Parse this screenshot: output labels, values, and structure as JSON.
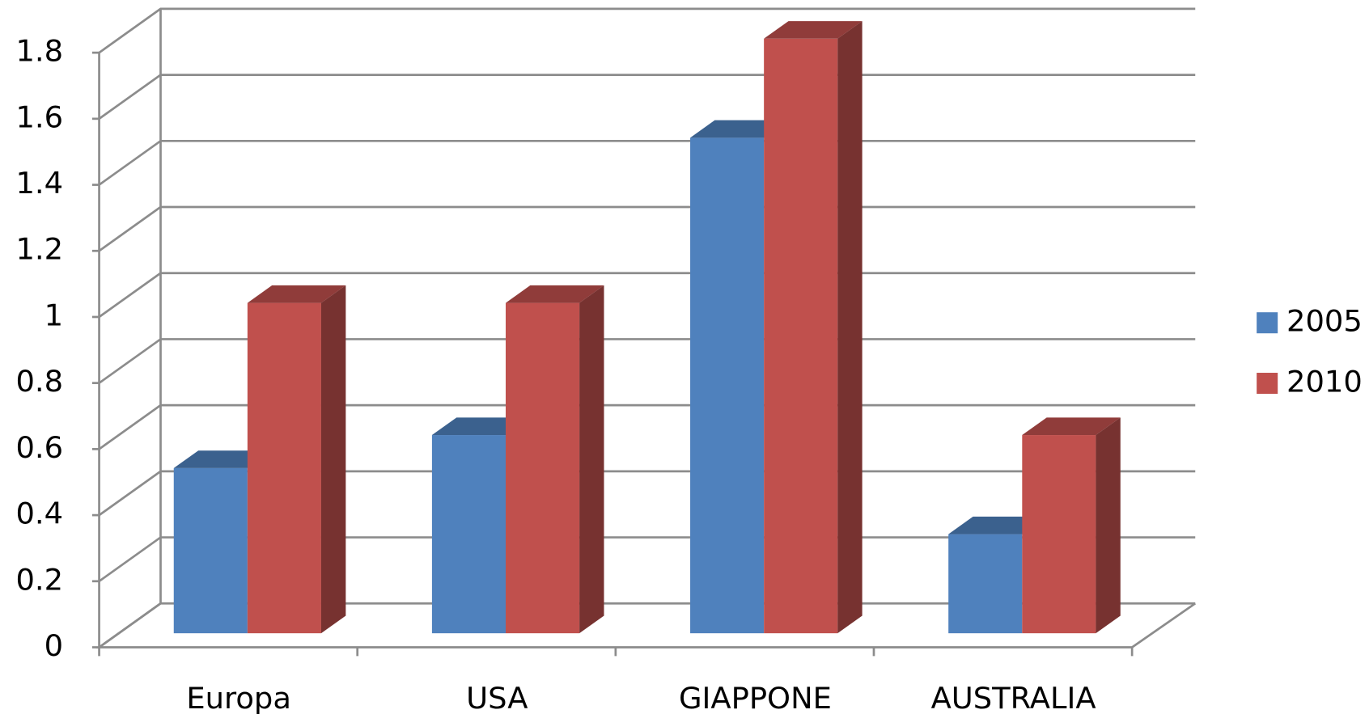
{
  "chart_data": {
    "type": "bar3d",
    "categories": [
      "Europa",
      "USA",
      "GIAPPONE",
      "AUSTRALIA"
    ],
    "series": [
      {
        "name": "2005",
        "color": "#4f81bd",
        "values": [
          0.5,
          0.6,
          1.5,
          0.3
        ]
      },
      {
        "name": "2010",
        "color": "#c0504d",
        "values": [
          1.0,
          1.0,
          1.8,
          0.6
        ]
      }
    ],
    "ylim": [
      0,
      1.8
    ],
    "yticks": [
      0,
      0.2,
      0.4,
      0.6,
      0.8,
      1,
      1.2,
      1.4,
      1.6,
      1.8
    ],
    "grid": true,
    "legend": "right"
  }
}
